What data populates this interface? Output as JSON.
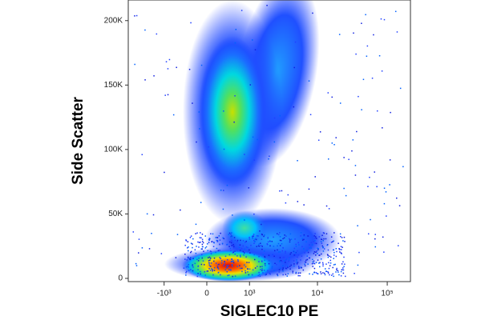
{
  "chart_data": {
    "type": "density",
    "x_label": "SIGLEC10 PE",
    "y_label": "Side Scatter",
    "xscale": "biexponential",
    "xlim": [
      -3450,
      215000
    ],
    "ylim": [
      -2500,
      216000
    ],
    "xticks": [
      {
        "value": -1000,
        "label": "-10³"
      },
      0,
      {
        "value": 1000,
        "label": "10³"
      },
      {
        "value": 10000,
        "label": "10⁴"
      },
      {
        "value": 100000,
        "label": "10⁵"
      }
    ],
    "yticks": [
      0,
      {
        "value": 50000,
        "label": "50K"
      },
      {
        "value": 100000,
        "label": "100K"
      },
      {
        "value": 150000,
        "label": "150K"
      },
      {
        "value": 200000,
        "label": "200K"
      }
    ]
  }
}
